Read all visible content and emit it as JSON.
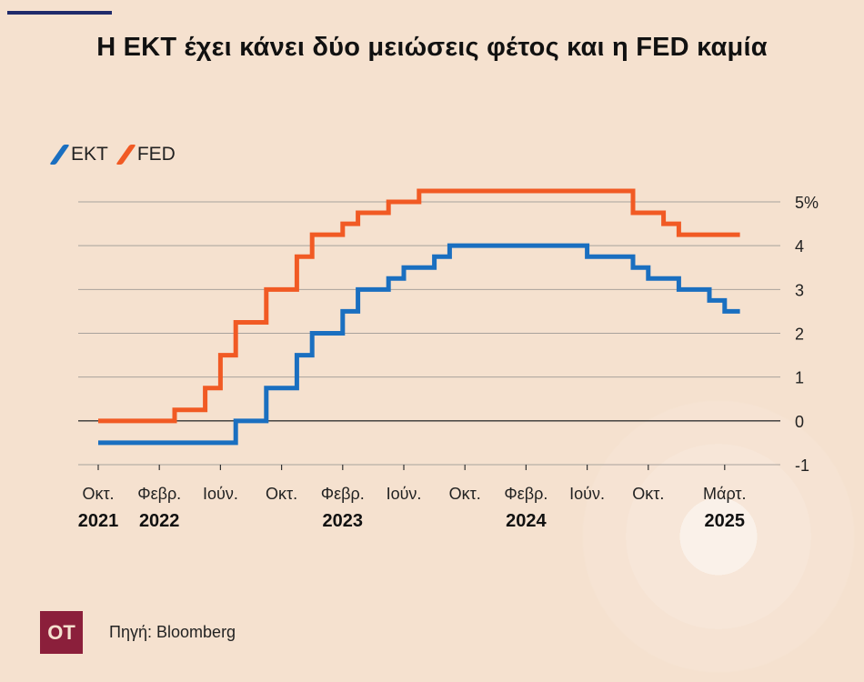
{
  "header": {
    "title": "Η ΕΚΤ έχει κάνει δύο μειώσεις φέτος και η FED καμία"
  },
  "colors": {
    "background": "#f5e1cf",
    "ekt": "#1a6fc0",
    "fed": "#f15a24",
    "brand": "#8b1f3b"
  },
  "legend": {
    "items": [
      {
        "label": "ΕΚΤ",
        "color": "#1a6fc0"
      },
      {
        "label": "FED",
        "color": "#f15a24"
      }
    ]
  },
  "chart_data": {
    "type": "line",
    "step": true,
    "title": "Η ΕΚΤ έχει κάνει δύο μειώσεις φέτος και η FED καμία",
    "ylim": [
      -1,
      5
    ],
    "y_ticks": [
      {
        "value": 5,
        "label": "5%"
      },
      {
        "value": 4,
        "label": "4"
      },
      {
        "value": 3,
        "label": "3"
      },
      {
        "value": 2,
        "label": "2"
      },
      {
        "value": 1,
        "label": "1"
      },
      {
        "value": 0,
        "label": "0"
      },
      {
        "value": -1,
        "label": "-1"
      }
    ],
    "x_range": [
      "2021-10",
      "2025-05"
    ],
    "x_ticks": [
      {
        "date": "2021-10",
        "label": "Οκτ.",
        "year": "2021"
      },
      {
        "date": "2022-02",
        "label": "Φεβρ.",
        "year": "2022"
      },
      {
        "date": "2022-06",
        "label": "Ιούν.",
        "year": ""
      },
      {
        "date": "2022-10",
        "label": "Οκτ.",
        "year": ""
      },
      {
        "date": "2023-02",
        "label": "Φεβρ.",
        "year": "2023"
      },
      {
        "date": "2023-06",
        "label": "Ιούν.",
        "year": ""
      },
      {
        "date": "2023-10",
        "label": "Οκτ.",
        "year": ""
      },
      {
        "date": "2024-02",
        "label": "Φεβρ.",
        "year": "2024"
      },
      {
        "date": "2024-06",
        "label": "Ιούν.",
        "year": ""
      },
      {
        "date": "2024-10",
        "label": "Οκτ.",
        "year": ""
      },
      {
        "date": "2025-03",
        "label": "Μάρτ.",
        "year": "2025"
      }
    ],
    "grid": true,
    "legend_position": "top-left",
    "series": [
      {
        "name": "ΕΚΤ",
        "color": "#1a6fc0",
        "points": [
          {
            "x": "2021-10",
            "y": -0.5
          },
          {
            "x": "2022-07",
            "y": 0.0
          },
          {
            "x": "2022-09",
            "y": 0.75
          },
          {
            "x": "2022-11",
            "y": 1.5
          },
          {
            "x": "2022-12",
            "y": 2.0
          },
          {
            "x": "2023-02",
            "y": 2.5
          },
          {
            "x": "2023-03",
            "y": 3.0
          },
          {
            "x": "2023-05",
            "y": 3.25
          },
          {
            "x": "2023-06",
            "y": 3.5
          },
          {
            "x": "2023-08",
            "y": 3.75
          },
          {
            "x": "2023-09",
            "y": 4.0
          },
          {
            "x": "2024-06",
            "y": 3.75
          },
          {
            "x": "2024-09",
            "y": 3.5
          },
          {
            "x": "2024-10",
            "y": 3.25
          },
          {
            "x": "2024-12",
            "y": 3.0
          },
          {
            "x": "2025-02",
            "y": 2.75
          },
          {
            "x": "2025-03",
            "y": 2.5
          },
          {
            "x": "2025-04",
            "y": 2.5
          }
        ]
      },
      {
        "name": "FED",
        "color": "#f15a24",
        "points": [
          {
            "x": "2021-10",
            "y": 0.0
          },
          {
            "x": "2022-03",
            "y": 0.25
          },
          {
            "x": "2022-05",
            "y": 0.75
          },
          {
            "x": "2022-06",
            "y": 1.5
          },
          {
            "x": "2022-07",
            "y": 2.25
          },
          {
            "x": "2022-09",
            "y": 3.0
          },
          {
            "x": "2022-11",
            "y": 3.75
          },
          {
            "x": "2022-12",
            "y": 4.25
          },
          {
            "x": "2023-02",
            "y": 4.5
          },
          {
            "x": "2023-03",
            "y": 4.75
          },
          {
            "x": "2023-05",
            "y": 5.0
          },
          {
            "x": "2023-07",
            "y": 5.25
          },
          {
            "x": "2024-09",
            "y": 4.75
          },
          {
            "x": "2024-11",
            "y": 4.5
          },
          {
            "x": "2024-12",
            "y": 4.25
          },
          {
            "x": "2025-04",
            "y": 4.25
          }
        ]
      }
    ]
  },
  "footer": {
    "logo_text": "OT",
    "source": "Πηγή: Bloomberg"
  }
}
